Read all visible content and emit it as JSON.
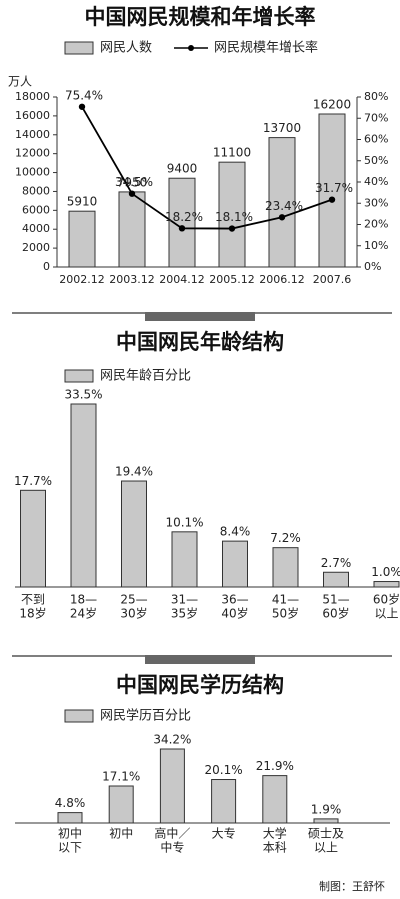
{
  "chart_data": [
    {
      "type": "bar",
      "title": "中国网民规模和年增长率",
      "y_unit": "万人",
      "categories": [
        "2002.12",
        "2003.12",
        "2004.12",
        "2005.12",
        "2006.12",
        "2007.6"
      ],
      "series": [
        {
          "name": "网民人数",
          "type": "bar",
          "color": "#c8c8c8",
          "values": [
            5910,
            7950,
            9400,
            11100,
            13700,
            16200
          ]
        },
        {
          "name": "网民规模年增长率",
          "type": "line",
          "axis": "y2",
          "color": "#000000",
          "values": [
            75.4,
            34.5,
            18.2,
            18.1,
            23.4,
            31.7
          ],
          "value_labels": [
            "75.4%",
            "34.5%",
            "18.2%",
            "18.1%",
            "23.4%",
            "31.7%"
          ]
        }
      ],
      "ylim": [
        0,
        18000
      ],
      "yticks": [
        0,
        2000,
        4000,
        6000,
        8000,
        10000,
        12000,
        14000,
        16000,
        18000
      ],
      "y2lim": [
        0,
        80
      ],
      "y2ticks": [
        {
          "value": 0,
          "label": "0%"
        },
        {
          "value": 10,
          "label": "10%"
        },
        {
          "value": 20,
          "label": "20%"
        },
        {
          "value": 30,
          "label": "30%"
        },
        {
          "value": 40,
          "label": "40%"
        },
        {
          "value": 50,
          "label": "50%"
        },
        {
          "value": 60,
          "label": "60%"
        },
        {
          "value": 70,
          "label": "70%"
        },
        {
          "value": 80,
          "label": "80%"
        }
      ]
    },
    {
      "type": "bar",
      "title": "中国网民年龄结构",
      "categories": [
        [
          "不到",
          "18岁"
        ],
        [
          "18—",
          "24岁"
        ],
        [
          "25—",
          "30岁"
        ],
        [
          "31—",
          "35岁"
        ],
        [
          "36—",
          "40岁"
        ],
        [
          "41—",
          "50岁"
        ],
        [
          "51—",
          "60岁"
        ],
        [
          "60岁",
          "以上"
        ]
      ],
      "series": [
        {
          "name": "网民年龄百分比",
          "type": "bar",
          "color": "#c8c8c8",
          "values": [
            17.7,
            33.5,
            19.4,
            10.1,
            8.4,
            7.2,
            2.7,
            1.0
          ],
          "value_labels": [
            "17.7%",
            "33.5%",
            "19.4%",
            "10.1%",
            "8.4%",
            "7.2%",
            "2.7%",
            "1.0%"
          ]
        }
      ]
    },
    {
      "type": "bar",
      "title": "中国网民学历结构",
      "categories": [
        [
          "初中",
          "以下"
        ],
        [
          "初中"
        ],
        [
          "高中／",
          "中专"
        ],
        [
          "大专"
        ],
        [
          "大学",
          "本科"
        ],
        [
          "硕士及",
          "以上"
        ]
      ],
      "series": [
        {
          "name": "网民学历百分比",
          "type": "bar",
          "color": "#c8c8c8",
          "values": [
            4.8,
            17.1,
            34.2,
            20.1,
            21.9,
            1.9
          ],
          "value_labels": [
            "4.8%",
            "17.1%",
            "34.2%",
            "20.1%",
            "21.9%",
            "1.9%"
          ]
        }
      ]
    }
  ],
  "credit": "制图：王舒怀"
}
